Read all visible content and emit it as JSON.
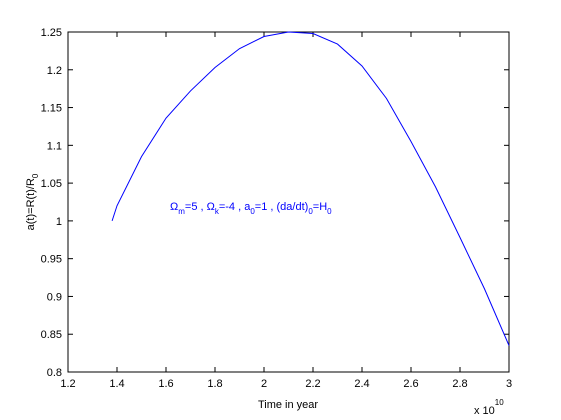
{
  "chart_data": {
    "type": "line",
    "xlabel": "Time in year",
    "ylabel": {
      "text": "a(t)=R(t)/R",
      "sub": "0"
    },
    "x_multiplier": {
      "base": "x 10",
      "exponent": "10"
    },
    "annotation": [
      [
        "Ω",
        "m"
      ],
      [
        "=5 , Ω",
        "k"
      ],
      [
        "=-4 , a",
        "0"
      ],
      [
        "=1 , (da/dt)",
        "0"
      ],
      [
        "=H",
        "0"
      ]
    ],
    "annotation_color": "#0000ff",
    "x": [
      1.38,
      1.4,
      1.5,
      1.6,
      1.7,
      1.8,
      1.9,
      2.0,
      2.1,
      2.2,
      2.3,
      2.4,
      2.5,
      2.6,
      2.7,
      2.8,
      2.9,
      3.0
    ],
    "series": [
      {
        "color": "#0000ff",
        "values": [
          1.0,
          1.02,
          1.085,
          1.136,
          1.172,
          1.203,
          1.228,
          1.244,
          1.25,
          1.248,
          1.234,
          1.205,
          1.162,
          1.105,
          1.045,
          0.978,
          0.91,
          0.835
        ]
      }
    ],
    "xlim": [
      1.2,
      3
    ],
    "xticks": [
      1.2,
      1.4,
      1.6,
      1.8,
      2,
      2.2,
      2.4,
      2.6,
      2.8,
      3
    ],
    "ylim": [
      0.8,
      1.25
    ],
    "yticks": [
      0.8,
      0.85,
      0.9,
      0.95,
      1,
      1.05,
      1.1,
      1.15,
      1.2,
      1.25
    ],
    "grid": false
  }
}
